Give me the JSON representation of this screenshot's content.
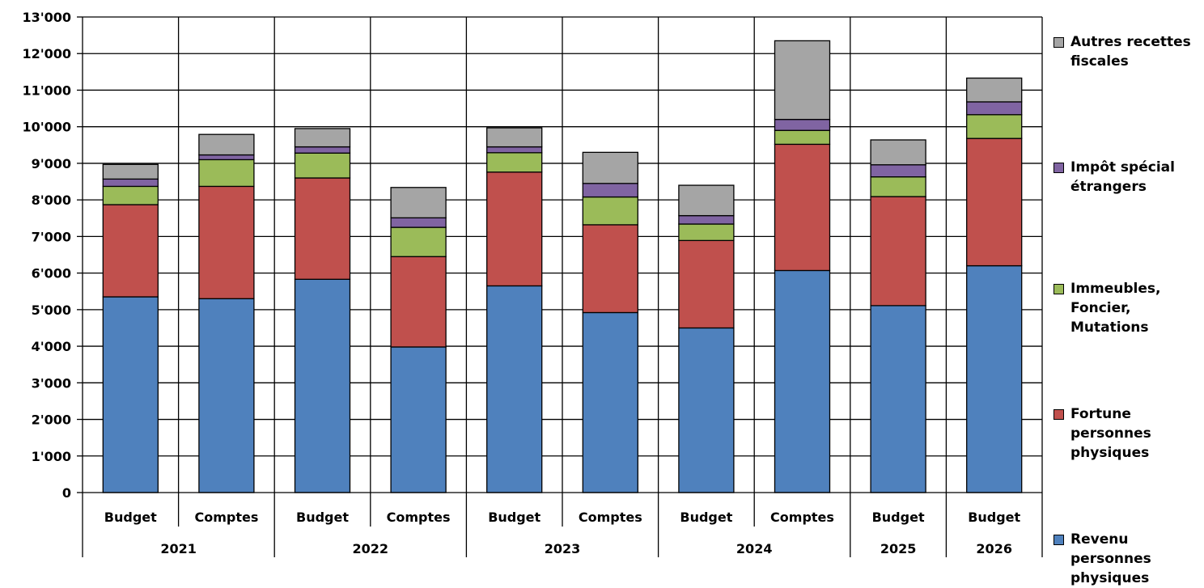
{
  "chart_data": {
    "type": "bar",
    "stacked": true,
    "title": "",
    "xlabel": "",
    "ylabel": "",
    "ylim": [
      0,
      13000
    ],
    "yticks": [
      0,
      1000,
      2000,
      3000,
      4000,
      5000,
      6000,
      7000,
      8000,
      9000,
      10000,
      11000,
      12000,
      13000
    ],
    "ytick_labels": [
      "0",
      "1'000",
      "2'000",
      "3'000",
      "4'000",
      "5'000",
      "6'000",
      "7'000",
      "8'000",
      "9'000",
      "10'000",
      "11'000",
      "12'000",
      "13'000"
    ],
    "grid": true,
    "legend_position": "right",
    "categories": [
      "Budget",
      "Comptes",
      "Budget",
      "Comptes",
      "Budget",
      "Comptes",
      "Budget",
      "Comptes",
      "Budget",
      "Budget"
    ],
    "groups": [
      {
        "label": "2021",
        "span": 2
      },
      {
        "label": "2022",
        "span": 2
      },
      {
        "label": "2023",
        "span": 2
      },
      {
        "label": "2024",
        "span": 2
      },
      {
        "label": "2025",
        "span": 1
      },
      {
        "label": "2026",
        "span": 1
      }
    ],
    "series": [
      {
        "name": "Revenu\npersonnes\nphysiques",
        "color": "#4F81BD",
        "values": [
          5350,
          5300,
          5830,
          3980,
          5650,
          4920,
          4500,
          6070,
          5110,
          6200
        ]
      },
      {
        "name": "Fortune\npersonnes\nphysiques",
        "color": "#C0504D",
        "values": [
          2520,
          3070,
          2770,
          2470,
          3110,
          2400,
          2390,
          3450,
          2980,
          3480
        ]
      },
      {
        "name": "Immeubles,\nFoncier,\nMutations",
        "color": "#9BBB59",
        "values": [
          500,
          730,
          680,
          800,
          530,
          760,
          450,
          380,
          540,
          650
        ]
      },
      {
        "name": "Impôt spécial\nétrangers",
        "color": "#8064A2",
        "values": [
          200,
          130,
          170,
          260,
          160,
          370,
          230,
          300,
          330,
          350
        ]
      },
      {
        "name": "Autres recettes\nfiscales",
        "color": "#A5A5A5",
        "values": [
          400,
          560,
          500,
          830,
          520,
          850,
          830,
          2150,
          680,
          650
        ]
      }
    ]
  }
}
